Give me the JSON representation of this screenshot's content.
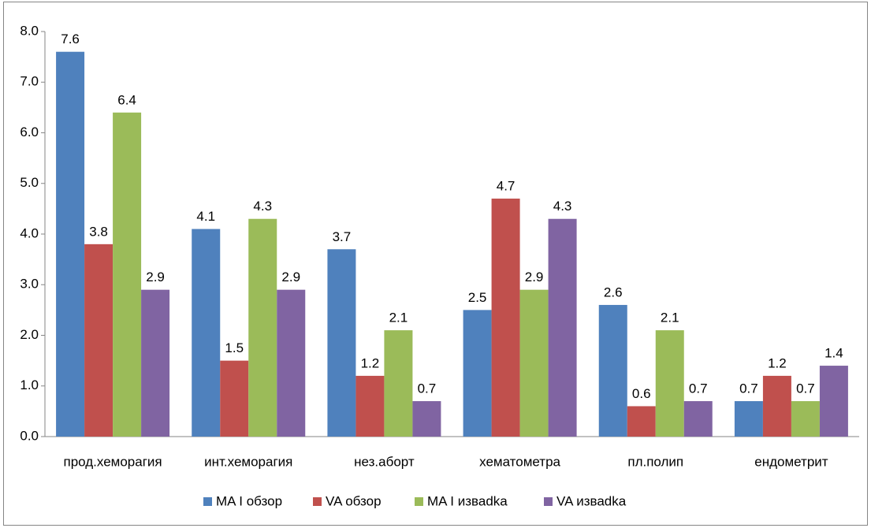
{
  "chart_data": {
    "type": "bar",
    "categories": [
      "прод.хеморагия",
      "инт.хеморагия",
      "нез.аборт",
      "хематометра",
      "пл.полип",
      "ендометрит"
    ],
    "series": [
      {
        "name": "MA I обзор",
        "color": "#4f81bd",
        "values": [
          7.6,
          4.1,
          3.7,
          2.5,
          2.6,
          0.7
        ]
      },
      {
        "name": "VA обзор",
        "color": "#c0504d",
        "values": [
          3.8,
          1.5,
          1.2,
          4.7,
          0.6,
          1.2
        ]
      },
      {
        "name": "MA I изваdka",
        "color": "#9bbb59",
        "values": [
          6.4,
          4.3,
          2.1,
          2.9,
          2.1,
          0.7
        ]
      },
      {
        "name": "VA изваdka",
        "color": "#8064a2",
        "values": [
          2.9,
          2.9,
          0.7,
          4.3,
          0.7,
          1.4
        ]
      }
    ],
    "ylim": [
      0,
      8
    ],
    "yticks": [
      {
        "value": 0,
        "label": "0.0"
      },
      {
        "value": 1,
        "label": "1.0"
      },
      {
        "value": 2,
        "label": "2.0"
      },
      {
        "value": 3,
        "label": "3.0"
      },
      {
        "value": 4,
        "label": "4.0"
      },
      {
        "value": 5,
        "label": "5.0"
      },
      {
        "value": 6,
        "label": "6.0"
      },
      {
        "value": 7,
        "label": "7.0"
      },
      {
        "value": 8,
        "label": "8.0"
      }
    ],
    "grid": false,
    "legend": "bottom"
  }
}
